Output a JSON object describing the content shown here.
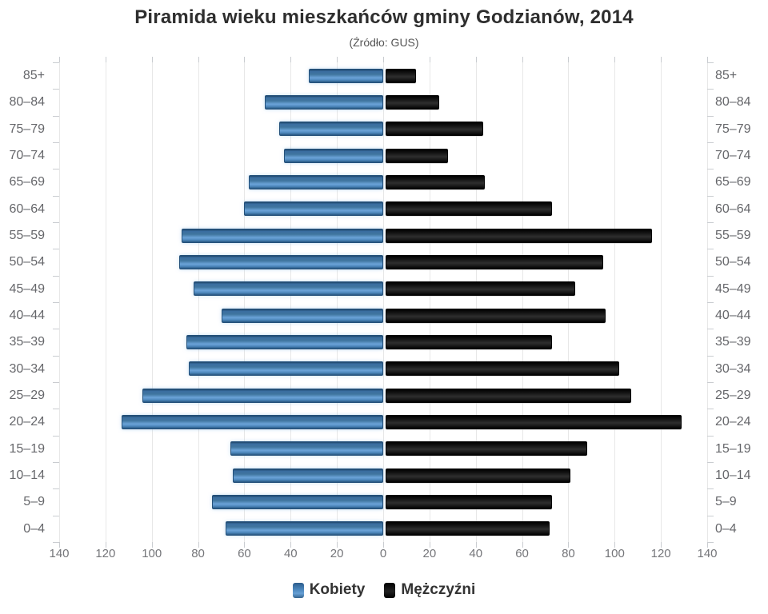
{
  "title": "Piramida wieku mieszkańców gminy Godzianów, 2014",
  "subtitle": "(Źródło: GUS)",
  "legend": {
    "kobiety_label": "Kobiety",
    "mezczyzni_label": "Mężczyźni"
  },
  "colors": {
    "kobiety": "#4d88bd",
    "mezczyzni": "#141414",
    "grid": "#e7e7e7",
    "tick": "#c9ccd0",
    "axis_text": "#75767a",
    "category_text": "#66676b",
    "title_text": "#2e2e2e"
  },
  "chart_data": {
    "type": "bar",
    "variant": "population-pyramid",
    "title": "Piramida wieku mieszkańców gminy Godzianów, 2014",
    "subtitle": "(Źródło: GUS)",
    "categories_top_to_bottom": [
      "85+",
      "80–84",
      "75–79",
      "70–74",
      "65–69",
      "60–64",
      "55–59",
      "50–54",
      "45–49",
      "40–44",
      "35–39",
      "30–34",
      "25–29",
      "20–24",
      "15–19",
      "10–14",
      "5–9",
      "0–4"
    ],
    "series": [
      {
        "name": "Kobiety",
        "side": "left",
        "color": "#4d88bd",
        "values": [
          32,
          51,
          45,
          43,
          58,
          60,
          87,
          88,
          82,
          70,
          85,
          84,
          104,
          113,
          66,
          65,
          74,
          68
        ]
      },
      {
        "name": "Mężczyźni",
        "side": "right",
        "color": "#141414",
        "values": [
          13,
          23,
          42,
          27,
          43,
          72,
          115,
          94,
          82,
          95,
          72,
          101,
          106,
          128,
          87,
          80,
          72,
          71
        ]
      }
    ],
    "xlim_each_side": [
      0,
      140
    ],
    "x_ticks": [
      140,
      120,
      100,
      80,
      60,
      40,
      20,
      0,
      20,
      40,
      60,
      80,
      100,
      120,
      140
    ],
    "grid": true,
    "legend_position": "bottom"
  }
}
